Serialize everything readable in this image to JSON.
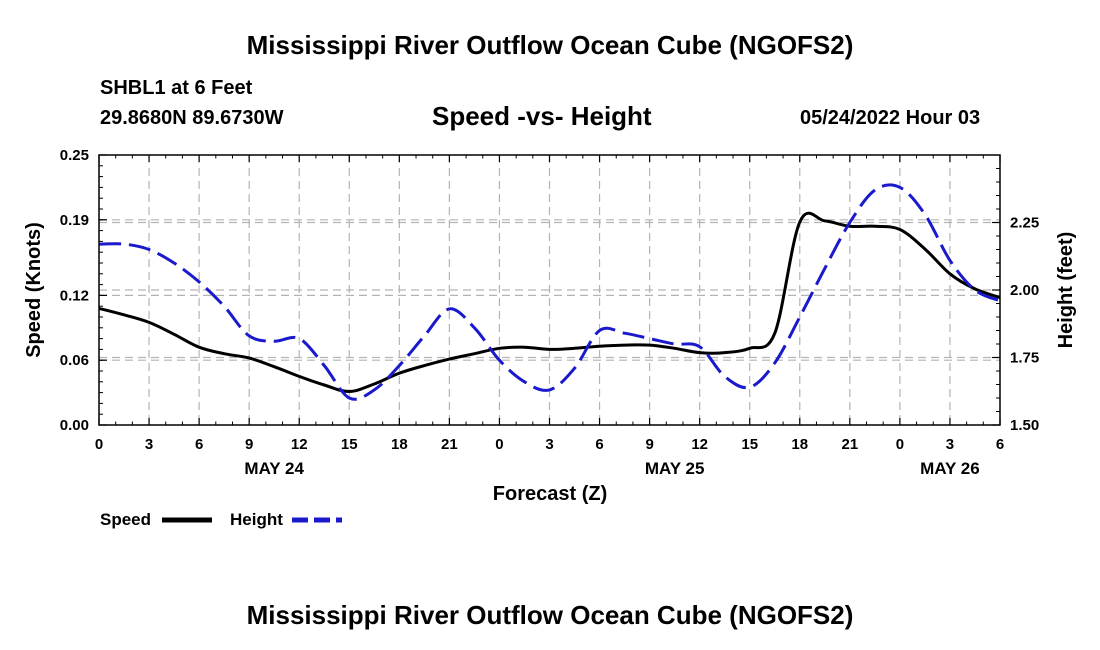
{
  "header": {
    "title": "Mississippi River Outflow Ocean Cube (NGOFS2)",
    "station": "SHBL1 at 6 Feet",
    "coords": "29.8680N  89.6730W",
    "subtitle": "Speed -vs- Height",
    "datetime": "05/24/2022 Hour 03"
  },
  "footer": {
    "title": "Mississippi River Outflow Ocean Cube (NGOFS2)"
  },
  "colors": {
    "speed": "#000000",
    "height": "#1a1acc",
    "grid": "#b4b4b4"
  },
  "chart_data": {
    "type": "line",
    "xlabel": "Forecast (Z)",
    "ylabel": "Speed (Knots)",
    "y2label": "Height (feet)",
    "x_range_hours": [
      0,
      54
    ],
    "x_ticks": [
      0,
      3,
      6,
      9,
      12,
      15,
      18,
      21,
      24,
      27,
      30,
      33,
      36,
      39,
      42,
      45,
      48,
      51,
      54
    ],
    "x_tick_labels": [
      "0",
      "3",
      "6",
      "9",
      "12",
      "15",
      "18",
      "21",
      "0",
      "3",
      "6",
      "9",
      "12",
      "15",
      "18",
      "21",
      "0",
      "3",
      "6"
    ],
    "date_labels": [
      {
        "hour": 10.5,
        "label": "MAY 24"
      },
      {
        "hour": 34.5,
        "label": "MAY 25"
      },
      {
        "hour": 51,
        "label": "MAY 26"
      }
    ],
    "y_left": {
      "range": [
        0,
        0.25
      ],
      "ticks": [
        0.0,
        0.06,
        0.12,
        0.19,
        0.25
      ],
      "tick_labels": [
        "0.00",
        "0.06",
        "0.12",
        "0.19",
        "0.25"
      ]
    },
    "y_right": {
      "range": [
        1.5,
        2.5
      ],
      "ticks": [
        1.5,
        1.75,
        2.0,
        2.25
      ],
      "tick_labels": [
        "1.50",
        "1.75",
        "2.00",
        "2.25"
      ]
    },
    "legend": [
      {
        "name": "Speed",
        "style": "solid"
      },
      {
        "name": "Height",
        "style": "dashed"
      }
    ],
    "series": [
      {
        "name": "Speed",
        "axis": "left",
        "style": "solid",
        "x": [
          0,
          1.5,
          3,
          4.5,
          6,
          7.5,
          9,
          10.5,
          12,
          13.5,
          15,
          16.5,
          18,
          19.5,
          21,
          22.5,
          24,
          25.5,
          27,
          28.5,
          30,
          31.5,
          33,
          34.5,
          36,
          37.5,
          39,
          40.5,
          42,
          43.5,
          45,
          46.5,
          48,
          49.5,
          51,
          52.5,
          54
        ],
        "values": [
          0.108,
          0.102,
          0.095,
          0.084,
          0.072,
          0.066,
          0.062,
          0.054,
          0.045,
          0.037,
          0.031,
          0.038,
          0.048,
          0.055,
          0.061,
          0.066,
          0.071,
          0.072,
          0.07,
          0.071,
          0.073,
          0.074,
          0.074,
          0.071,
          0.067,
          0.067,
          0.071,
          0.085,
          0.188,
          0.189,
          0.184,
          0.184,
          0.181,
          0.163,
          0.14,
          0.126,
          0.118
        ]
      },
      {
        "name": "Height",
        "axis": "right",
        "style": "dashed",
        "x": [
          0,
          1.5,
          3,
          4.5,
          6,
          7.5,
          9,
          10.5,
          12,
          13.5,
          15,
          16.5,
          18,
          19.5,
          21,
          22.5,
          24,
          25.5,
          27,
          28.5,
          30,
          31.5,
          33,
          34.5,
          36,
          37.5,
          39,
          40.5,
          42,
          43.5,
          45,
          46.5,
          48,
          49.5,
          51,
          52.5,
          54
        ],
        "values": [
          2.17,
          2.17,
          2.15,
          2.1,
          2.03,
          1.94,
          1.83,
          1.81,
          1.82,
          1.72,
          1.6,
          1.63,
          1.72,
          1.83,
          1.93,
          1.86,
          1.74,
          1.66,
          1.63,
          1.71,
          1.85,
          1.84,
          1.82,
          1.8,
          1.79,
          1.68,
          1.64,
          1.73,
          1.9,
          2.08,
          2.25,
          2.37,
          2.38,
          2.28,
          2.11,
          2.0,
          1.96
        ]
      }
    ]
  }
}
